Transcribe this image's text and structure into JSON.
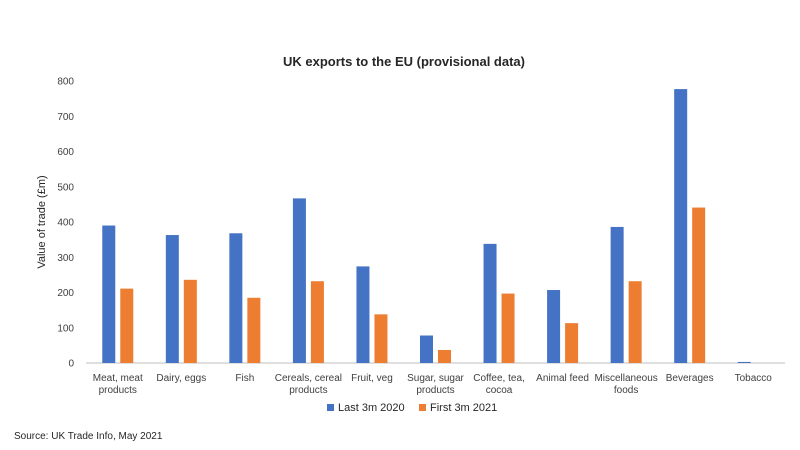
{
  "source": "Source: UK Trade Info, May 2021",
  "chart_data": {
    "type": "bar",
    "title": "UK exports to the EU (provisional data)",
    "xlabel": "",
    "ylabel": "Value of trade (£m)",
    "ylim": [
      0,
      800
    ],
    "yticks": [
      0,
      100,
      200,
      300,
      400,
      500,
      600,
      700,
      800
    ],
    "grid": false,
    "legend_position": "bottom",
    "categories": [
      [
        "Meat, meat",
        "products"
      ],
      [
        "Dairy, eggs"
      ],
      [
        "Fish"
      ],
      [
        "Cereals, cereal",
        "products"
      ],
      [
        "Fruit, veg"
      ],
      [
        "Sugar, sugar",
        "products"
      ],
      [
        "Coffee, tea,",
        "cocoa"
      ],
      [
        "Animal feed"
      ],
      [
        "Miscellaneous",
        "foods"
      ],
      [
        "Beverages"
      ],
      [
        "Tobacco"
      ]
    ],
    "series": [
      {
        "name": "Last 3m 2020",
        "color": "#4472C4",
        "values": [
          390,
          363,
          368,
          467,
          274,
          78,
          338,
          207,
          386,
          777,
          3
        ]
      },
      {
        "name": "First 3m 2021",
        "color": "#ED7D31",
        "values": [
          211,
          236,
          185,
          232,
          138,
          37,
          197,
          113,
          232,
          441,
          0
        ]
      }
    ]
  }
}
